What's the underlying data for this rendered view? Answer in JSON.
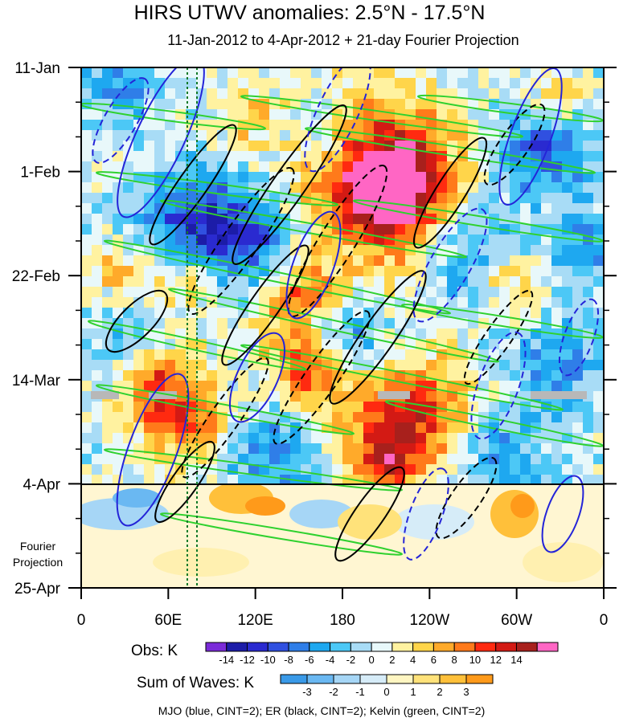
{
  "chart_data": {
    "type": "heatmap",
    "title": "HIRS UTWV anomalies: 2.5°N - 17.5°N",
    "subtitle": "11-Jan-2012 to 4-Apr-2012 + 21-day Fourier Projection",
    "xlabel": "",
    "ylabel": "",
    "x_ticks": [
      "0",
      "60E",
      "120E",
      "180",
      "120W",
      "60W",
      "0"
    ],
    "y_ticks": [
      "11-Jan",
      "1-Feb",
      "22-Feb",
      "14-Mar",
      "4-Apr",
      "25-Apr"
    ],
    "fourier_label": [
      "Fourier",
      "Projection"
    ],
    "obs_legend": {
      "label": "Obs: K",
      "levels": [
        "-14",
        "-12",
        "-10",
        "-8",
        "-6",
        "-4",
        "-2",
        "0",
        "2",
        "4",
        "6",
        "8",
        "10",
        "12",
        "14"
      ],
      "colors": [
        "#7b2bd9",
        "#1c1ca8",
        "#2a2ad0",
        "#3050e0",
        "#2f7ee8",
        "#1ea8f0",
        "#4cc8f6",
        "#a8dcf6",
        "#e8f8fa",
        "#fff2a0",
        "#ffd54a",
        "#ffaa2a",
        "#ff7a1a",
        "#ff2a10",
        "#d31a14",
        "#a8201c",
        "#ff66c4"
      ]
    },
    "waves_legend": {
      "label": "Sum of Waves: K",
      "levels": [
        "-3",
        "-2",
        "-1",
        "0",
        "1",
        "2",
        "3"
      ],
      "colors": [
        "#3a9ae8",
        "#6ab8f2",
        "#a6d6f6",
        "#d6ecf8",
        "#fff6c2",
        "#ffe27a",
        "#ffc03a",
        "#ff9a1a"
      ]
    },
    "contour_legend": "MJO (blue, CINT=2); ER (black, CINT=2); Kelvin (green, CINT=2)"
  }
}
